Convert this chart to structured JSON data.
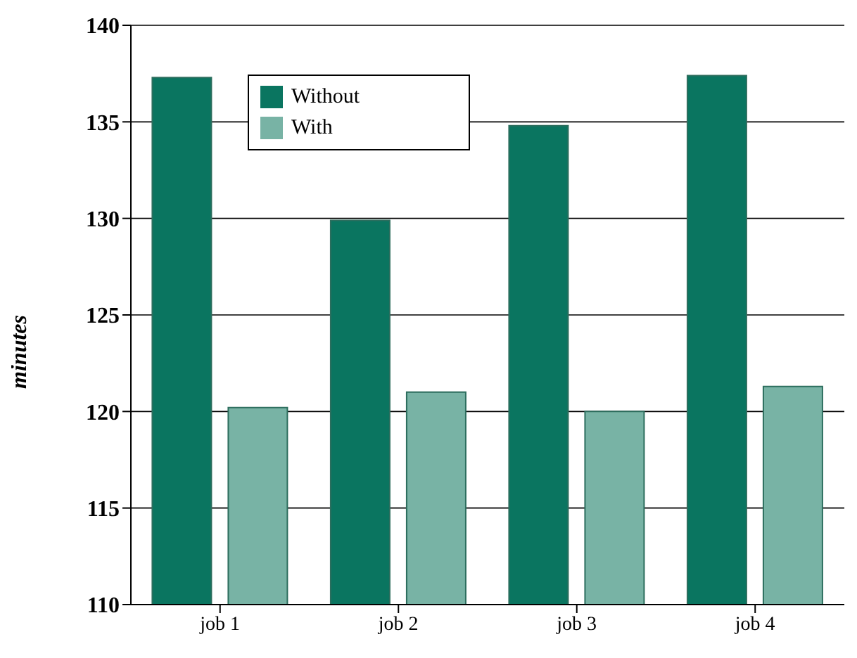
{
  "chart_data": {
    "type": "bar",
    "ylabel": "minutes",
    "categories": [
      "job 1",
      "job 2",
      "job 3",
      "job 4"
    ],
    "series": [
      {
        "name": "Without",
        "color": "#0a7560",
        "values": [
          137.3,
          129.9,
          134.8,
          137.4
        ]
      },
      {
        "name": "With",
        "color": "#78b3a5",
        "values": [
          120.2,
          121.0,
          120.0,
          121.3
        ]
      }
    ],
    "ylim": [
      110,
      140
    ],
    "yticks": [
      110,
      115,
      120,
      125,
      130,
      135,
      140
    ],
    "grid": "y",
    "legend": "top left"
  }
}
